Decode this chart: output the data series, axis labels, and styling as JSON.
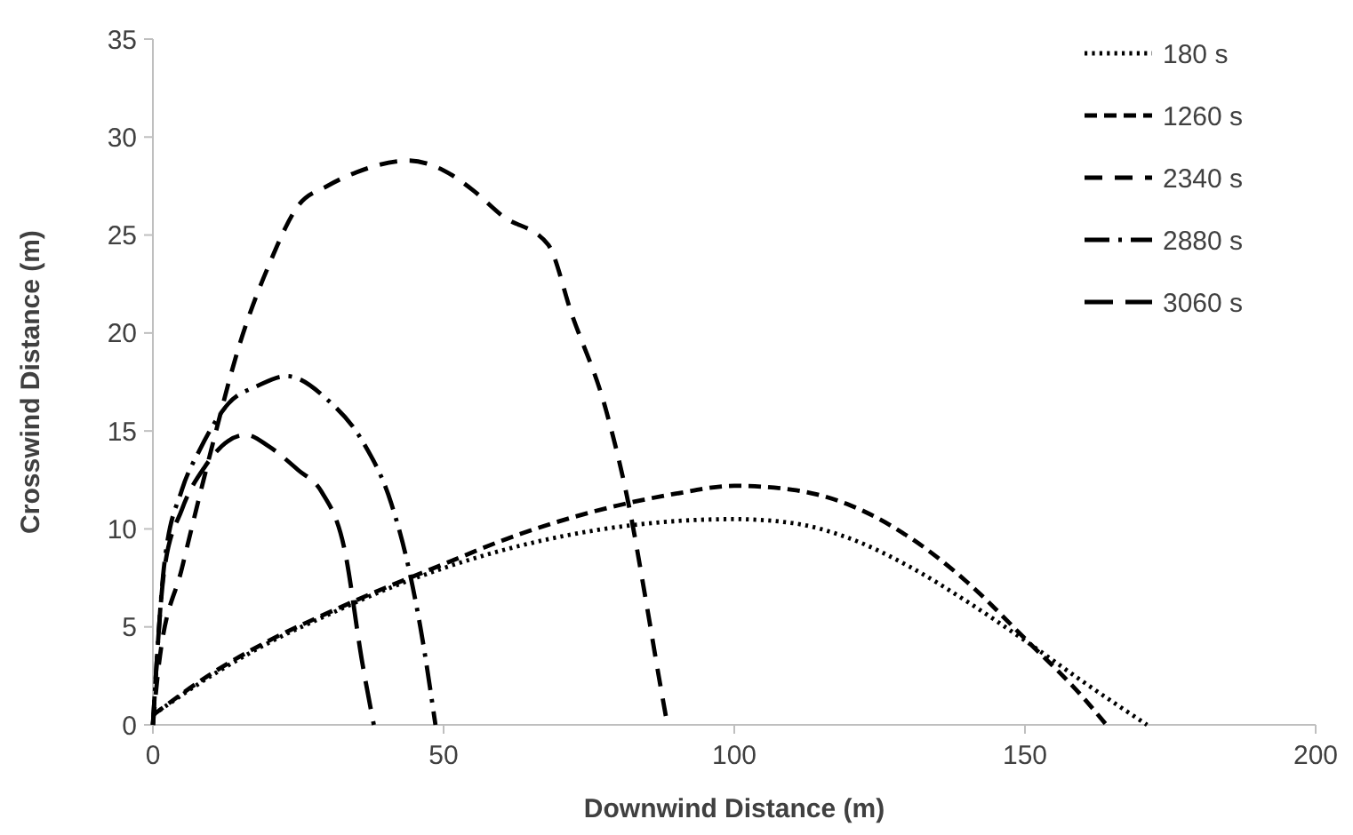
{
  "chart_data": {
    "type": "line",
    "xlabel": "Downwind Distance (m)",
    "ylabel": "Crosswind Distance (m)",
    "xlim": [
      0,
      200
    ],
    "xticks": [
      0,
      50,
      100,
      150,
      200
    ],
    "ylim": [
      0,
      35
    ],
    "yticks": [
      0,
      5,
      10,
      15,
      20,
      25,
      30,
      35
    ],
    "grid": false,
    "legend": "top right",
    "marker": "none",
    "series": [
      {
        "name": "180 s",
        "color": "#000000",
        "line_style": "dotted",
        "x": [
          0,
          10,
          20,
          30,
          40,
          50,
          60,
          70,
          80,
          90,
          100,
          110,
          120,
          130,
          140,
          150,
          160,
          171
        ],
        "values": [
          0.5,
          2.5,
          4.2,
          5.6,
          6.9,
          8,
          8.9,
          9.6,
          10.1,
          10.4,
          10.5,
          10.3,
          9.5,
          8.1,
          6.3,
          4.3,
          2.2,
          0
        ]
      },
      {
        "name": "1260 s",
        "color": "#000000",
        "line_style": "dashed",
        "x": [
          0,
          10,
          20,
          30,
          40,
          50,
          60,
          70,
          80,
          90,
          100,
          110,
          120,
          130,
          140,
          150,
          160,
          164
        ],
        "values": [
          0.5,
          2.6,
          4.3,
          5.7,
          7,
          8.2,
          9.4,
          10.4,
          11.2,
          11.8,
          12.2,
          12,
          11.2,
          9.6,
          7.3,
          4.4,
          1.4,
          0
        ]
      },
      {
        "name": "2340 s",
        "color": "#000000",
        "line_style": "dashed",
        "x": [
          0,
          1,
          5,
          10,
          15,
          20,
          25,
          30,
          35,
          44,
          50,
          55,
          60,
          68,
          72,
          78,
          82,
          85,
          87,
          88.5
        ],
        "values": [
          0,
          3,
          8,
          14,
          19.5,
          23.5,
          26.5,
          27.5,
          28.2,
          28.8,
          28.3,
          27.3,
          26,
          24.5,
          21,
          16,
          11,
          6,
          2.5,
          0
        ]
      },
      {
        "name": "2880 s",
        "color": "#000000",
        "line_style": "dashed",
        "x": [
          0,
          2,
          5,
          8,
          13,
          18,
          23,
          30,
          36,
          41,
          44,
          46,
          48.6
        ],
        "values": [
          0,
          8.3,
          12,
          14,
          16.4,
          17.3,
          17.8,
          16.6,
          14.5,
          11.3,
          8,
          5,
          0
        ]
      },
      {
        "name": "3060 s",
        "color": "#000000",
        "line_style": "dashed",
        "x": [
          0,
          2,
          5,
          9,
          13,
          16,
          20,
          25,
          29,
          33,
          36,
          38
        ],
        "values": [
          0,
          8,
          11,
          13.2,
          14.5,
          14.8,
          14.2,
          13,
          11.9,
          8.9,
          3.2,
          0
        ]
      }
    ]
  }
}
